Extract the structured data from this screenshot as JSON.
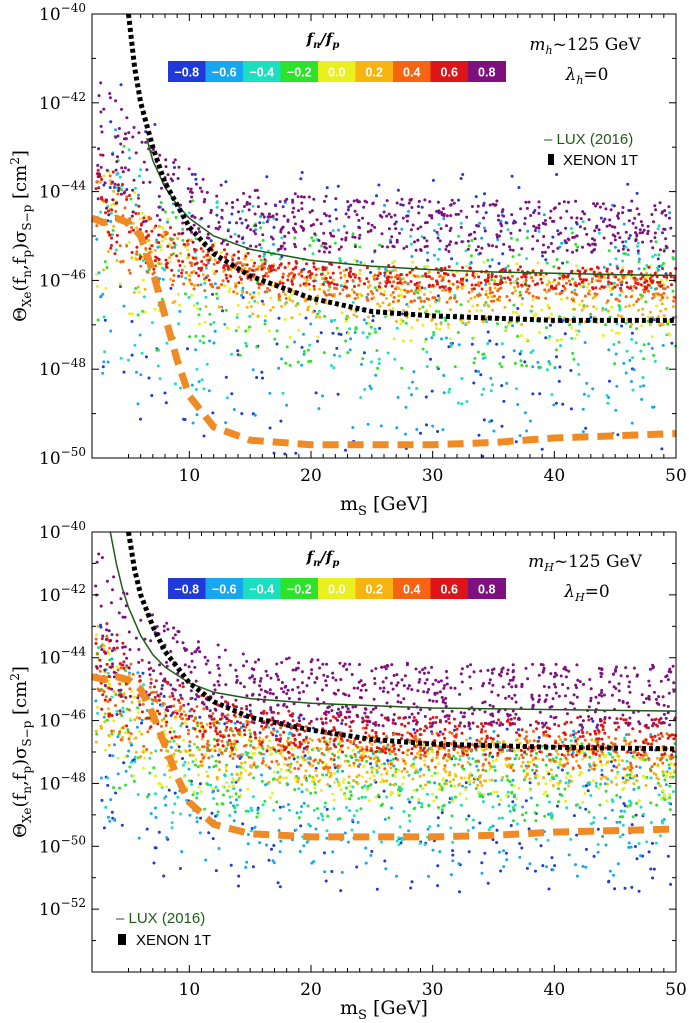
{
  "chart_data": [
    {
      "type": "scatter",
      "xlabel": "m_S [GeV]",
      "xlabel_main": "m",
      "xlabel_sub": "S",
      "xlabel_unit": " [GeV]",
      "ylabel_main": "Θ",
      "ylabel_sub1": "Xe",
      "ylabel_mid": "(f",
      "ylabel_sub2": "n",
      "ylabel_mid2": ",f",
      "ylabel_sub3": "p",
      "ylabel_mid3": ")σ",
      "ylabel_sub4": "S−p",
      "ylabel_unit": " [cm",
      "ylabel_sup": "2",
      "ylabel_end": "]",
      "xlim": [
        2,
        50
      ],
      "ylim_exp": [
        -50,
        -40
      ],
      "y_scale": "log",
      "x_ticks": [
        10,
        20,
        30,
        40,
        50
      ],
      "y_tick_exps": [
        -50,
        -48,
        -46,
        -44,
        -42,
        -40
      ],
      "colorbar_title": "fn/fp",
      "colorbar_labels": [
        "−0.8",
        "−0.6",
        "−0.4",
        "−0.2",
        "0.0",
        "0.2",
        "0.4",
        "0.6",
        "0.8"
      ],
      "colorbar_colors": [
        "#1f3ad8",
        "#17a7f0",
        "#1be0c0",
        "#2de22b",
        "#eaef20",
        "#f7b411",
        "#f46412",
        "#dd1518",
        "#7d127e"
      ],
      "annot_line1": "m_h~125 GeV",
      "annot_mass_sym": "m",
      "annot_mass_sub": "h",
      "annot_mass_rest": "~125 GeV",
      "annot_lambda_sym": "λ",
      "annot_lambda_sub": "h",
      "annot_lambda_rest": "=0",
      "legend_placement": "upper-right",
      "lux_label": "– LUX (2016)",
      "xenon_label": "XENON 1T",
      "series": [
        {
          "name": "LUX (2016)",
          "style": "solid-dark-green",
          "x": [
            6.5,
            7,
            8,
            9,
            10,
            12,
            15,
            20,
            25,
            30,
            35,
            40,
            45,
            50
          ],
          "y_exp": [
            -42.8,
            -43.3,
            -43.9,
            -44.3,
            -44.6,
            -45.0,
            -45.3,
            -45.55,
            -45.68,
            -45.76,
            -45.81,
            -45.84,
            -45.87,
            -45.89
          ]
        },
        {
          "name": "XENON 1T",
          "style": "dotted-black",
          "x": [
            5,
            5.5,
            6,
            7,
            8,
            9,
            10,
            12,
            15,
            20,
            25,
            30,
            40,
            50
          ],
          "y_exp": [
            -40,
            -41.2,
            -42.0,
            -43.0,
            -43.8,
            -44.3,
            -44.8,
            -45.4,
            -45.9,
            -46.4,
            -46.7,
            -46.8,
            -46.9,
            -46.9
          ]
        },
        {
          "name": "neutrino-floor",
          "style": "dashed-orange",
          "x": [
            2,
            3,
            4,
            5,
            6,
            7,
            8,
            9,
            10,
            12,
            15,
            20,
            25,
            30,
            35,
            40,
            45,
            50
          ],
          "y_exp": [
            -44.6,
            -44.7,
            -44.6,
            -44.7,
            -45.0,
            -45.8,
            -46.8,
            -47.8,
            -48.6,
            -49.3,
            -49.6,
            -49.7,
            -49.7,
            -49.7,
            -49.65,
            -49.55,
            -49.5,
            -49.45
          ]
        }
      ],
      "scatter_model": {
        "ratios": [
          -0.8,
          -0.6,
          -0.4,
          -0.2,
          0.0,
          0.2,
          0.4,
          0.6,
          0.8
        ],
        "band_upper_exp": [
          -43.6,
          -44.3,
          -44.6,
          -44.9,
          -45.6,
          -45.8,
          -45.9,
          -45.7,
          -44.2
        ],
        "band_lower_exp": [
          -50.0,
          -49.5,
          -48.8,
          -48.0,
          -47.4,
          -47.0,
          -46.5,
          -46.2,
          -45.4
        ],
        "points_per_ratio": [
          220,
          220,
          220,
          240,
          260,
          320,
          380,
          440,
          600
        ]
      }
    },
    {
      "type": "scatter",
      "xlabel": "m_S [GeV]",
      "xlabel_main": "m",
      "xlabel_sub": "S",
      "xlabel_unit": " [GeV]",
      "ylabel_main": "Θ",
      "ylabel_sub1": "Xe",
      "ylabel_mid": "(f",
      "ylabel_sub2": "n",
      "ylabel_mid2": ",f",
      "ylabel_sub3": "p",
      "ylabel_mid3": ")σ",
      "ylabel_sub4": "S−p",
      "ylabel_unit": " [cm",
      "ylabel_sup": "2",
      "ylabel_end": "]",
      "xlim": [
        2,
        50
      ],
      "ylim_exp": [
        -54,
        -40
      ],
      "y_scale": "log",
      "x_ticks": [
        10,
        20,
        30,
        40,
        50
      ],
      "y_tick_exps": [
        -52,
        -50,
        -48,
        -46,
        -44,
        -42,
        -40
      ],
      "colorbar_title": "fn/fp",
      "colorbar_labels": [
        "−0.8",
        "−0.6",
        "−0.4",
        "−0.2",
        "0.0",
        "0.2",
        "0.4",
        "0.6",
        "0.8"
      ],
      "colorbar_colors": [
        "#1f3ad8",
        "#17a7f0",
        "#1be0c0",
        "#2de22b",
        "#eaef20",
        "#f7b411",
        "#f46412",
        "#dd1518",
        "#7d127e"
      ],
      "annot_line1": "m_H~125 GeV",
      "annot_mass_sym": "m",
      "annot_mass_sub": "H",
      "annot_mass_rest": "~125 GeV",
      "annot_lambda_sym": "λ",
      "annot_lambda_sub": "H",
      "annot_lambda_rest": "=0",
      "legend_placement": "lower-left",
      "lux_label": "– LUX (2016)",
      "xenon_label": "XENON 1T",
      "series": [
        {
          "name": "LUX (2016)",
          "style": "solid-dark-green",
          "x": [
            3.5,
            4,
            4.5,
            5,
            6,
            7,
            8,
            10,
            12,
            15,
            20,
            30,
            40,
            50
          ],
          "y_exp": [
            -40,
            -41.0,
            -41.8,
            -42.4,
            -43.3,
            -43.9,
            -44.3,
            -44.8,
            -45.1,
            -45.3,
            -45.45,
            -45.6,
            -45.65,
            -45.7
          ]
        },
        {
          "name": "XENON 1T",
          "style": "dotted-black",
          "x": [
            5,
            5.5,
            6,
            7,
            8,
            9,
            10,
            12,
            15,
            20,
            25,
            30,
            40,
            50
          ],
          "y_exp": [
            -40,
            -41.2,
            -42.0,
            -43.0,
            -43.8,
            -44.3,
            -44.8,
            -45.4,
            -45.9,
            -46.3,
            -46.6,
            -46.75,
            -46.85,
            -46.9
          ]
        },
        {
          "name": "neutrino-floor",
          "style": "dashed-orange",
          "x": [
            2,
            3,
            4,
            5,
            6,
            7,
            8,
            9,
            10,
            12,
            15,
            20,
            25,
            30,
            35,
            40,
            45,
            50
          ],
          "y_exp": [
            -44.6,
            -44.7,
            -44.6,
            -44.7,
            -45.0,
            -45.8,
            -46.8,
            -47.8,
            -48.6,
            -49.3,
            -49.6,
            -49.7,
            -49.7,
            -49.7,
            -49.65,
            -49.55,
            -49.5,
            -49.45
          ]
        }
      ],
      "scatter_model": {
        "ratios": [
          -0.8,
          -0.6,
          -0.4,
          -0.2,
          0.0,
          0.2,
          0.4,
          0.6,
          0.8
        ],
        "band_upper_exp": [
          -46.0,
          -46.3,
          -46.5,
          -46.7,
          -46.9,
          -46.6,
          -46.3,
          -45.9,
          -44.2
        ],
        "band_lower_exp": [
          -51.5,
          -51.0,
          -50.0,
          -49.2,
          -48.6,
          -48.1,
          -47.6,
          -47.1,
          -46.2
        ],
        "points_per_ratio": [
          240,
          240,
          260,
          300,
          340,
          400,
          460,
          520,
          720
        ]
      }
    }
  ]
}
